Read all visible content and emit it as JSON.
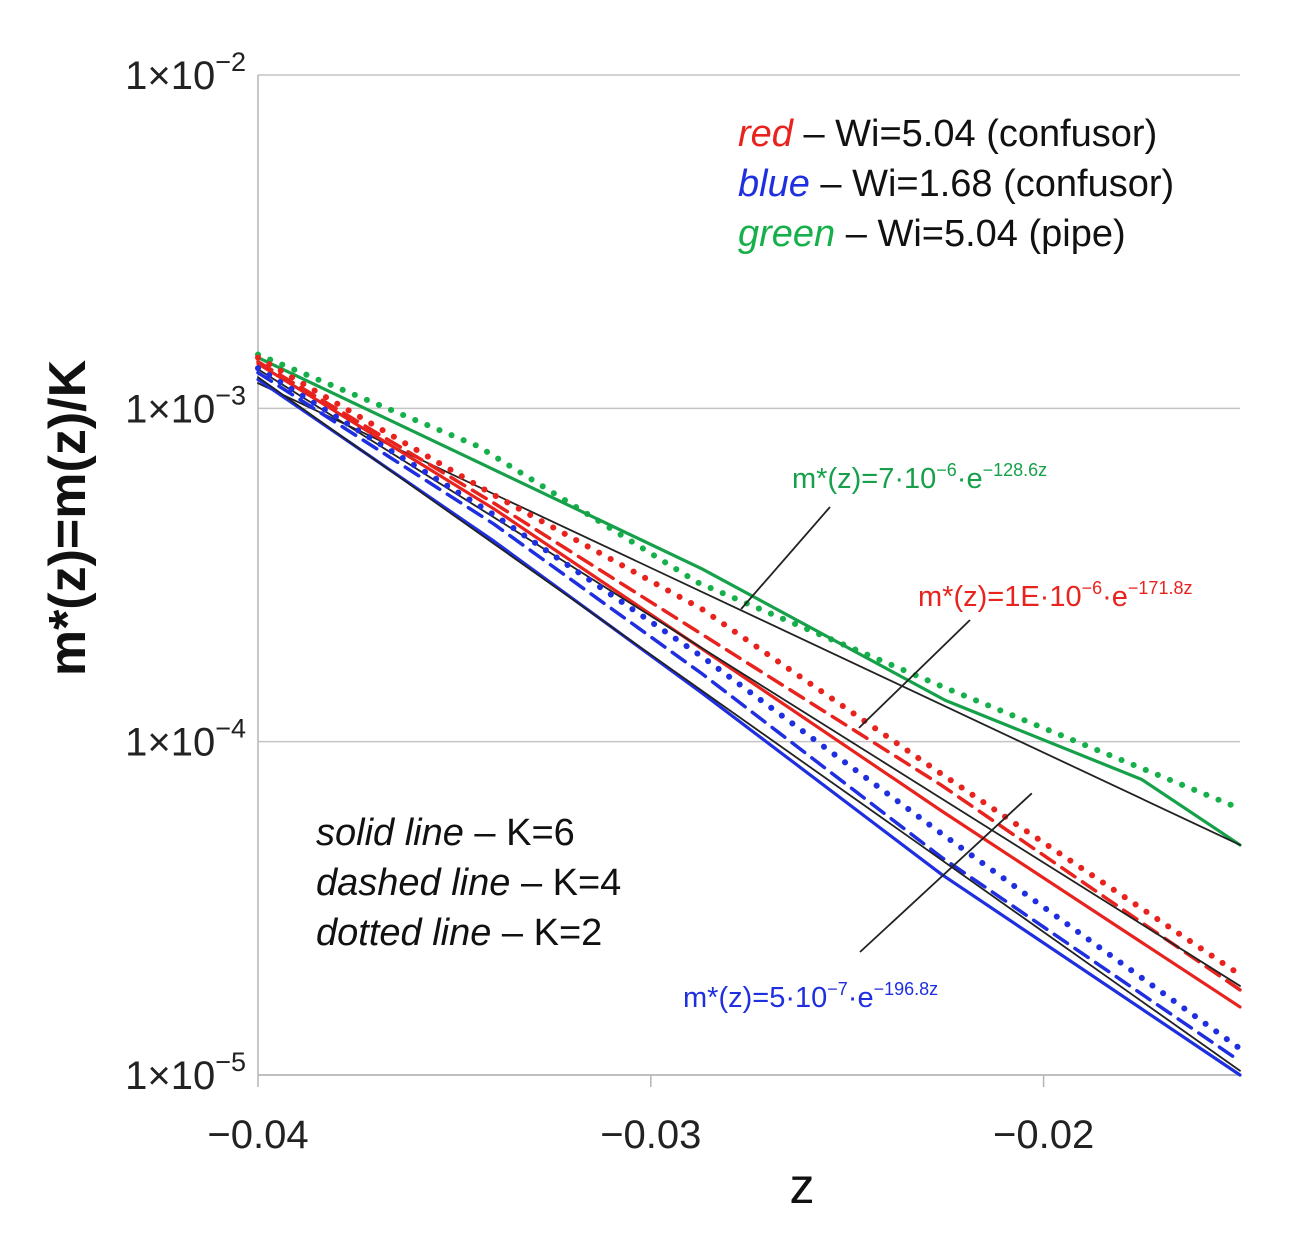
{
  "chart_data": {
    "type": "line",
    "xlabel": "z",
    "ylabel": "m*(z)=m(z)/K",
    "yscale": "log",
    "xlim": [
      -0.04,
      -0.015
    ],
    "ylim": [
      1e-05,
      0.01
    ],
    "x_ticks": [
      {
        "value": -0.04,
        "label": "−0.04"
      },
      {
        "value": -0.03,
        "label": "−0.03"
      },
      {
        "value": -0.02,
        "label": "−0.02"
      }
    ],
    "y_ticks": [
      {
        "value": 0.01,
        "mantissa": "1×10",
        "exponent": "−2"
      },
      {
        "value": 0.001,
        "mantissa": "1×10",
        "exponent": "−3"
      },
      {
        "value": 0.0001,
        "mantissa": "1×10",
        "exponent": "−4"
      },
      {
        "value": 1e-05,
        "mantissa": "1×10",
        "exponent": "−5"
      }
    ],
    "grid": "horizontal",
    "series": [
      {
        "name": "green dotted (Wi=5.04 pipe, K=2)",
        "color": "#16b04a",
        "style": "dotted",
        "x": [
          -0.04,
          -0.0344,
          -0.0288,
          -0.0225,
          -0.015
        ],
        "y": [
          0.00145,
          0.00077,
          0.0003,
          0.000145,
          6.3e-05
        ]
      },
      {
        "name": "green solid (Wi=5.04 pipe, K=6)",
        "color": "#16a04a",
        "style": "solid",
        "x": [
          -0.04,
          -0.0344,
          -0.0287,
          -0.0225,
          -0.0175,
          -0.015
        ],
        "y": [
          0.00142,
          0.00069,
          0.00033,
          0.000133,
          7.7e-05,
          4.9e-05
        ]
      },
      {
        "name": "fit green m*(z)=7·10⁻⁶·e^(−128.6z)",
        "color": "#222222",
        "style": "thin",
        "x": [
          -0.04,
          -0.015
        ],
        "y": [
          0.00119,
          4.9e-05
        ]
      },
      {
        "name": "red dotted (Wi=5.04 confusor, K=2)",
        "color": "#e8231e",
        "style": "dotted",
        "x": [
          -0.04,
          -0.034,
          -0.0287,
          -0.0226,
          -0.015
        ],
        "y": [
          0.00142,
          0.00055,
          0.00025,
          8e-05,
          2e-05
        ]
      },
      {
        "name": "red dashed (Wi=5.04 confusor, K=4)",
        "color": "#e8231e",
        "style": "dashed",
        "x": [
          -0.04,
          -0.034,
          -0.0287,
          -0.0226,
          -0.015
        ],
        "y": [
          0.00138,
          0.00052,
          0.00021,
          7.4e-05,
          1.8e-05
        ]
      },
      {
        "name": "red solid (Wi=5.04 confusor, K=6)",
        "color": "#e8231e",
        "style": "solid",
        "x": [
          -0.04,
          -0.034,
          -0.0287,
          -0.0226,
          -0.015
        ],
        "y": [
          0.00136,
          0.0005,
          0.00019,
          6.2e-05,
          1.6e-05
        ]
      },
      {
        "name": "fit red m*(z)=1E·10⁻⁶·e^(−171.8z)",
        "color": "#222222",
        "style": "thin",
        "x": [
          -0.04,
          -0.015
        ],
        "y": [
          0.00131,
          1.85e-05
        ]
      },
      {
        "name": "blue dotted (Wi=1.68 confusor, K=2)",
        "color": "#1f2fe0",
        "style": "dotted",
        "x": [
          -0.04,
          -0.034,
          -0.0287,
          -0.0226,
          -0.015
        ],
        "y": [
          0.00132,
          0.00048,
          0.00018,
          5.3e-05,
          1.2e-05
        ]
      },
      {
        "name": "blue dashed (Wi=1.68 confusor, K=4)",
        "color": "#1f2fe0",
        "style": "dashed",
        "x": [
          -0.04,
          -0.034,
          -0.0287,
          -0.0226,
          -0.015
        ],
        "y": [
          0.00128,
          0.00045,
          0.00016,
          4.5e-05,
          1.1e-05
        ]
      },
      {
        "name": "blue solid (Wi=1.68 confusor, K=6)",
        "color": "#1f2fe0",
        "style": "solid",
        "x": [
          -0.04,
          -0.034,
          -0.0287,
          -0.0226,
          -0.015
        ],
        "y": [
          0.00122,
          0.0004,
          0.00014,
          4e-05,
          1e-05
        ]
      },
      {
        "name": "fit blue m*(z)=5·10⁻⁷·e^(−196.8z)",
        "color": "#222222",
        "style": "thin",
        "x": [
          -0.04,
          -0.015
        ],
        "y": [
          0.00124,
          1.03e-05
        ]
      }
    ],
    "legend": [
      {
        "key": "red",
        "text": " – Wi=5.04 (confusor)",
        "color": "#e8231e"
      },
      {
        "key": "blue",
        "text": " – Wi=1.68 (confusor)",
        "color": "#1f2fe0"
      },
      {
        "key": "green",
        "text": " – Wi=5.04 (pipe)",
        "color": "#16b04a"
      }
    ],
    "legend_position": "top-right",
    "line_style_legend": [
      {
        "key": "solid line",
        "text": " – K=6"
      },
      {
        "key": "dashed line",
        "text": " – K=4"
      },
      {
        "key": "dotted line",
        "text": " – K=2"
      }
    ],
    "line_style_legend_position": "bottom-left",
    "annotations": [
      {
        "text": "m*(z)=7·10",
        "exp": "−6",
        "mid": "·e",
        "exp2": "−128.6z",
        "color": "#16a04a",
        "target_x": -0.0277,
        "target_y": 0.00025
      },
      {
        "text": "m*(z)=1E·10",
        "exp": "−6",
        "mid": "·e",
        "exp2": "−171.8z",
        "color": "#e8231e",
        "target_x": -0.0247,
        "target_y": 0.00011
      },
      {
        "text": "m*(z)=5·10",
        "exp": "−7",
        "mid": "·e",
        "exp2": "−196.8z",
        "color": "#1f2fe0",
        "target_x": -0.0203,
        "target_y": 7e-05
      }
    ]
  }
}
